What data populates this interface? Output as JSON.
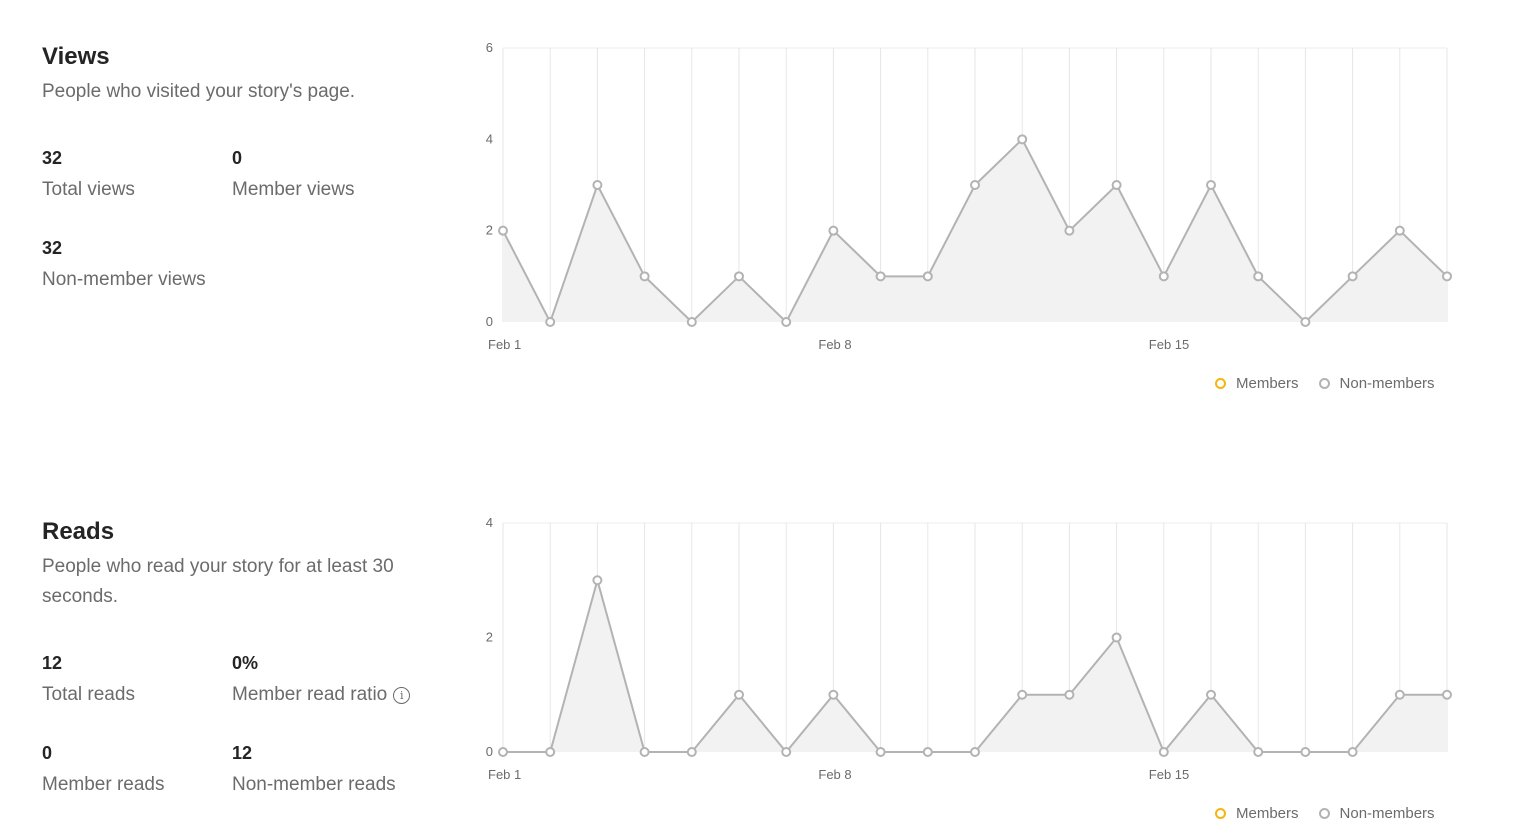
{
  "views": {
    "title": "Views",
    "description": "People who visited your story's page.",
    "stats": [
      {
        "value": "32",
        "label": "Total views"
      },
      {
        "value": "0",
        "label": "Member views"
      },
      {
        "value": "32",
        "label": "Non-member views"
      }
    ]
  },
  "reads": {
    "title": "Reads",
    "description": "People who read your story for at least 30 seconds.",
    "stats": [
      {
        "value": "12",
        "label": "Total reads"
      },
      {
        "value": "0%",
        "label": "Member read ratio"
      },
      {
        "value": "0",
        "label": "Member reads"
      },
      {
        "value": "12",
        "label": "Non-member reads"
      }
    ]
  },
  "legend": {
    "members": "Members",
    "non_members": "Non-members",
    "members_color": "#f5b50a",
    "non_members_color": "#b3b3b3"
  },
  "chart_data": [
    {
      "type": "area",
      "title": "",
      "xlabel": "",
      "ylabel": "",
      "x": [
        "Feb 1",
        "Feb 2",
        "Feb 3",
        "Feb 4",
        "Feb 5",
        "Feb 6",
        "Feb 7",
        "Feb 8",
        "Feb 9",
        "Feb 10",
        "Feb 11",
        "Feb 12",
        "Feb 13",
        "Feb 14",
        "Feb 15",
        "Feb 16",
        "Feb 17",
        "Feb 18",
        "Feb 19",
        "Feb 20",
        "Feb 21"
      ],
      "x_tick_labels": [
        "Feb 1",
        "Feb 8",
        "Feb 15"
      ],
      "y_ticks": [
        0,
        2,
        4,
        6
      ],
      "ylim": [
        0,
        6
      ],
      "grid": "vertical",
      "legend_position": "bottom-right",
      "series": [
        {
          "name": "Members",
          "values": [
            0,
            0,
            0,
            0,
            0,
            0,
            0,
            0,
            0,
            0,
            0,
            0,
            0,
            0,
            0,
            0,
            0,
            0,
            0,
            0,
            0
          ]
        },
        {
          "name": "Non-members",
          "values": [
            2,
            0,
            3,
            1,
            0,
            1,
            0,
            2,
            1,
            1,
            3,
            4,
            2,
            3,
            1,
            3,
            1,
            0,
            1,
            2,
            1
          ]
        }
      ]
    },
    {
      "type": "area",
      "title": "",
      "xlabel": "",
      "ylabel": "",
      "x": [
        "Feb 1",
        "Feb 2",
        "Feb 3",
        "Feb 4",
        "Feb 5",
        "Feb 6",
        "Feb 7",
        "Feb 8",
        "Feb 9",
        "Feb 10",
        "Feb 11",
        "Feb 12",
        "Feb 13",
        "Feb 14",
        "Feb 15",
        "Feb 16",
        "Feb 17",
        "Feb 18",
        "Feb 19",
        "Feb 20",
        "Feb 21"
      ],
      "x_tick_labels": [
        "Feb 1",
        "Feb 8",
        "Feb 15"
      ],
      "y_ticks": [
        0,
        2,
        4
      ],
      "ylim": [
        0,
        4
      ],
      "grid": "vertical",
      "legend_position": "bottom-right",
      "series": [
        {
          "name": "Members",
          "values": [
            0,
            0,
            0,
            0,
            0,
            0,
            0,
            0,
            0,
            0,
            0,
            0,
            0,
            0,
            0,
            0,
            0,
            0,
            0,
            0,
            0
          ]
        },
        {
          "name": "Non-members",
          "values": [
            0,
            0,
            3,
            0,
            0,
            1,
            0,
            1,
            0,
            0,
            0,
            1,
            1,
            2,
            0,
            1,
            0,
            0,
            0,
            1,
            1
          ]
        }
      ]
    }
  ]
}
